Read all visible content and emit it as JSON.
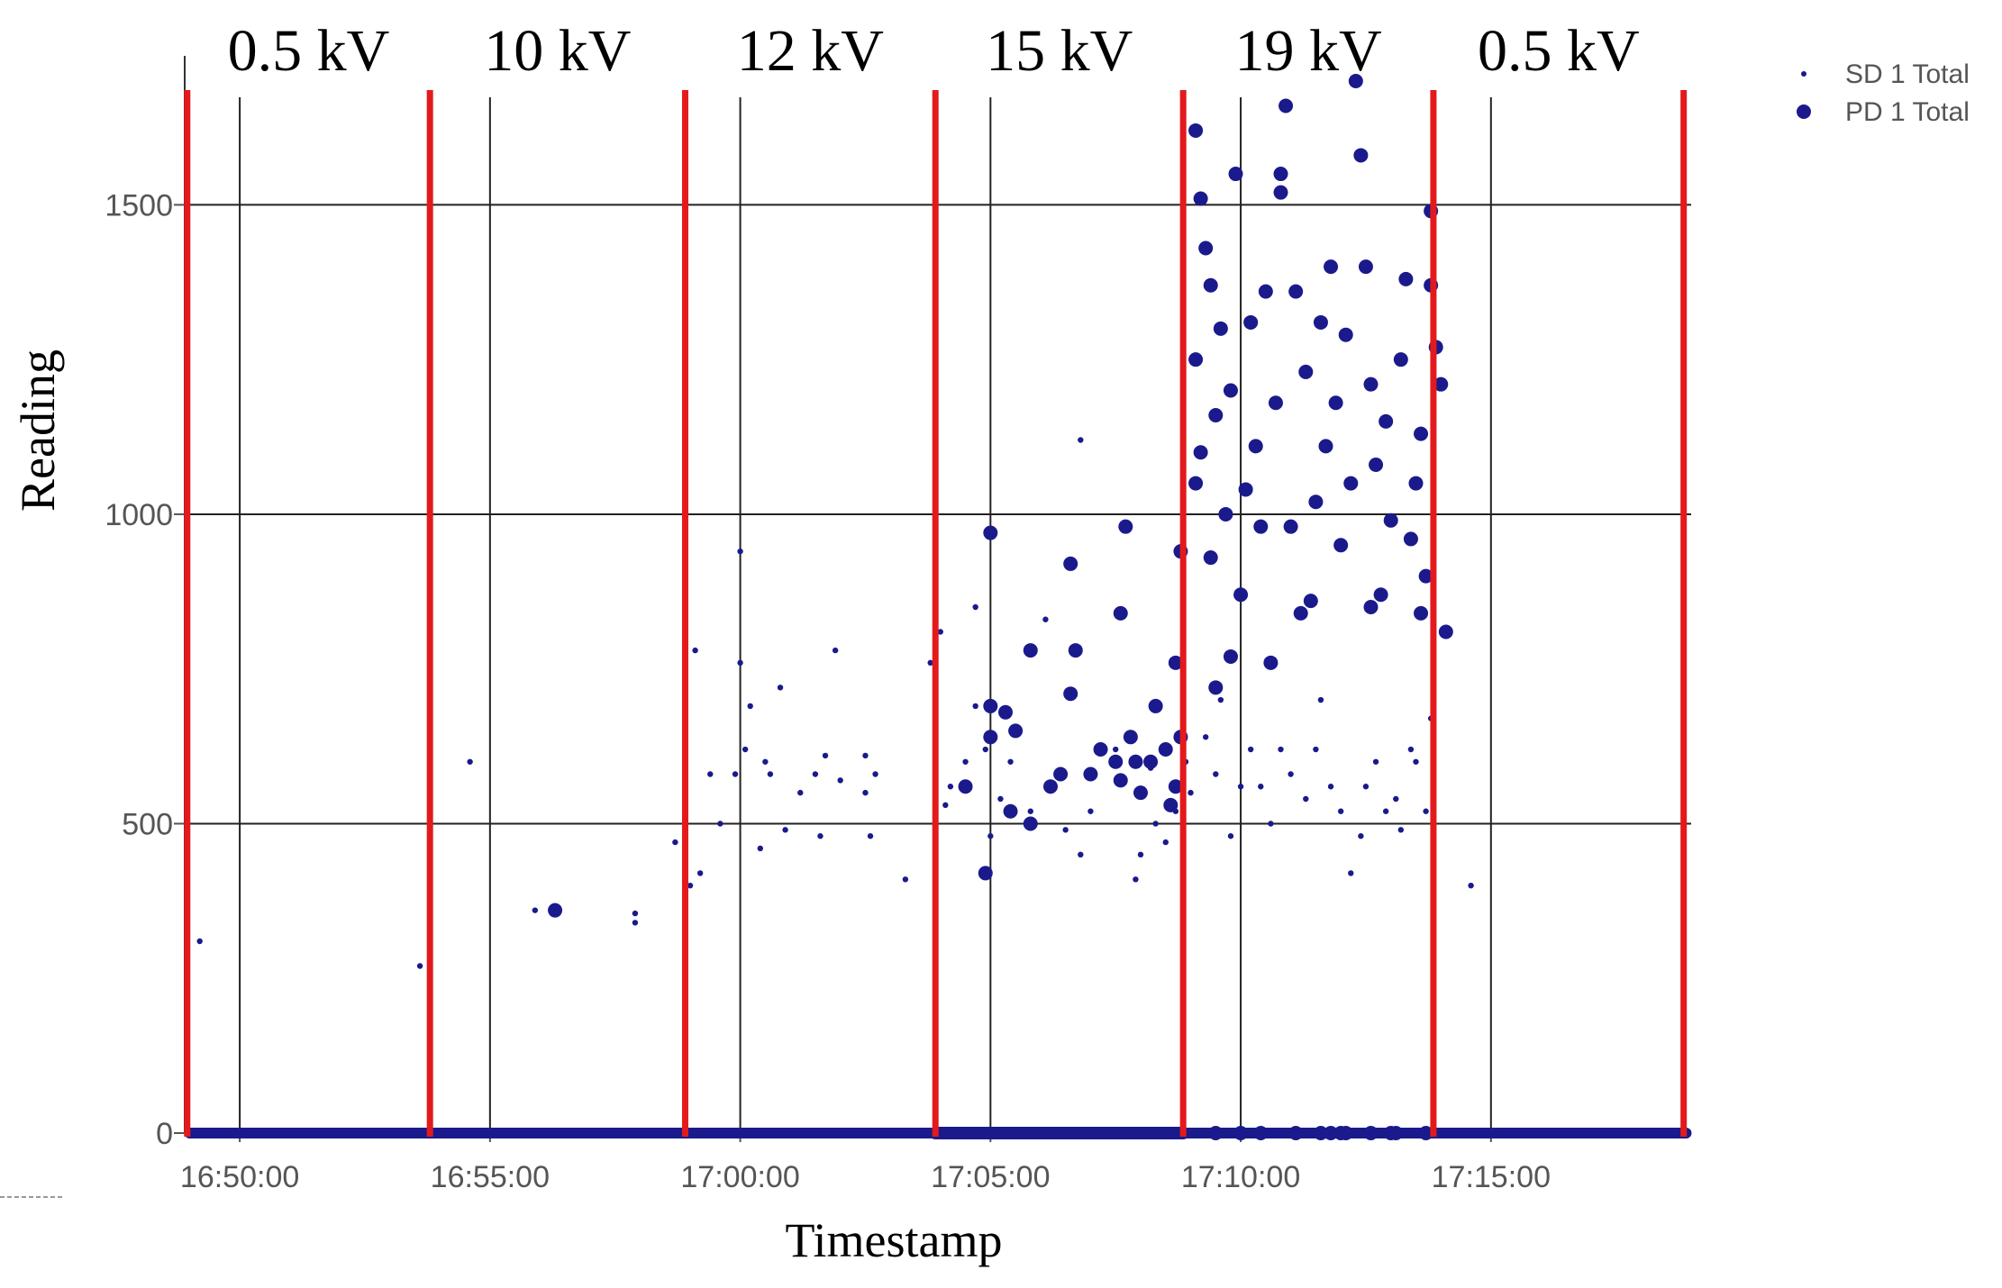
{
  "chart_data": {
    "type": "scatter",
    "title": "",
    "xlabel": "Timestamp",
    "ylabel": "Reading",
    "x_unit": "minutes after 16:50:00",
    "x_ticks": [
      "16:50:00",
      "16:55:00",
      "17:00:00",
      "17:05:00",
      "17:10:00",
      "17:15:00"
    ],
    "x_tick_values": [
      0,
      5,
      10,
      15,
      20,
      25
    ],
    "xlim": [
      -1.1,
      29.0
    ],
    "y_ticks": [
      "0",
      "500",
      "1000",
      "1500"
    ],
    "y_tick_values": [
      0,
      500,
      1000,
      1500
    ],
    "ylim": [
      0,
      1700
    ],
    "grid": true,
    "legend_position": "top-right",
    "voltage_boundaries": [
      -1.05,
      3.8,
      8.9,
      13.9,
      18.85,
      23.85,
      28.85
    ],
    "voltage_bands": [
      {
        "label": "0.5 kV",
        "start": -1.05,
        "end": 3.8
      },
      {
        "label": "10 kV",
        "start": 3.8,
        "end": 8.9
      },
      {
        "label": "12 kV",
        "start": 8.9,
        "end": 13.9
      },
      {
        "label": "15 kV",
        "start": 13.9,
        "end": 18.85
      },
      {
        "label": "19 kV",
        "start": 18.85,
        "end": 23.85
      },
      {
        "label": "0.5 kV",
        "start": 23.85,
        "end": 28.85
      }
    ],
    "boundary_color": "#e31a1c",
    "series_color": "#1a1a8c",
    "series": [
      {
        "name": "SD 1 Total",
        "marker": "small",
        "baseline": {
          "y": 0,
          "x_start": -1.0,
          "x_end": 28.9
        },
        "points": [
          [
            -0.8,
            310
          ],
          [
            3.6,
            270
          ],
          [
            4.6,
            600
          ],
          [
            5.9,
            360
          ],
          [
            7.9,
            340
          ],
          [
            7.9,
            355
          ],
          [
            8.7,
            470
          ],
          [
            9.0,
            400
          ],
          [
            9.1,
            780
          ],
          [
            9.2,
            420
          ],
          [
            9.4,
            580
          ],
          [
            9.6,
            500
          ],
          [
            9.9,
            580
          ],
          [
            10.1,
            620
          ],
          [
            10.0,
            940
          ],
          [
            10.0,
            760
          ],
          [
            10.2,
            690
          ],
          [
            10.4,
            460
          ],
          [
            10.5,
            600
          ],
          [
            10.6,
            580
          ],
          [
            10.8,
            720
          ],
          [
            10.9,
            490
          ],
          [
            11.2,
            550
          ],
          [
            11.5,
            580
          ],
          [
            11.6,
            480
          ],
          [
            11.7,
            610
          ],
          [
            11.9,
            780
          ],
          [
            12.0,
            570
          ],
          [
            12.5,
            550
          ],
          [
            12.5,
            610
          ],
          [
            12.6,
            480
          ],
          [
            12.7,
            580
          ],
          [
            13.3,
            410
          ],
          [
            13.8,
            760
          ],
          [
            14.0,
            810
          ],
          [
            14.1,
            530
          ],
          [
            14.2,
            560
          ],
          [
            14.5,
            600
          ],
          [
            14.7,
            850
          ],
          [
            14.7,
            690
          ],
          [
            14.9,
            620
          ],
          [
            15.0,
            480
          ],
          [
            15.2,
            540
          ],
          [
            15.4,
            600
          ],
          [
            15.8,
            520
          ],
          [
            16.1,
            830
          ],
          [
            16.5,
            490
          ],
          [
            16.8,
            1120
          ],
          [
            16.8,
            450
          ],
          [
            17.0,
            520
          ],
          [
            17.5,
            620
          ],
          [
            17.6,
            570
          ],
          [
            17.9,
            410
          ],
          [
            18.0,
            450
          ],
          [
            18.2,
            590
          ],
          [
            18.3,
            500
          ],
          [
            18.5,
            470
          ],
          [
            18.7,
            520
          ],
          [
            18.9,
            600
          ],
          [
            19.0,
            550
          ],
          [
            19.3,
            640
          ],
          [
            19.5,
            580
          ],
          [
            19.6,
            700
          ],
          [
            19.8,
            480
          ],
          [
            20.0,
            560
          ],
          [
            20.2,
            620
          ],
          [
            20.4,
            560
          ],
          [
            20.6,
            500
          ],
          [
            20.8,
            620
          ],
          [
            21.0,
            580
          ],
          [
            21.3,
            540
          ],
          [
            21.5,
            620
          ],
          [
            21.6,
            700
          ],
          [
            21.8,
            560
          ],
          [
            22.0,
            520
          ],
          [
            22.2,
            420
          ],
          [
            22.4,
            480
          ],
          [
            22.5,
            560
          ],
          [
            22.7,
            600
          ],
          [
            22.9,
            520
          ],
          [
            23.1,
            540
          ],
          [
            23.2,
            490
          ],
          [
            23.4,
            620
          ],
          [
            23.5,
            600
          ],
          [
            23.7,
            520
          ],
          [
            23.8,
            670
          ],
          [
            24.6,
            400
          ]
        ]
      },
      {
        "name": "PD 1 Total",
        "marker": "large",
        "baseline": {
          "y": 0,
          "x_start": 13.9,
          "x_end": 18.85
        },
        "points": [
          [
            6.3,
            360
          ],
          [
            15.0,
            970
          ],
          [
            15.0,
            690
          ],
          [
            15.0,
            640
          ],
          [
            14.9,
            420
          ],
          [
            14.5,
            560
          ],
          [
            15.3,
            680
          ],
          [
            15.4,
            520
          ],
          [
            15.5,
            650
          ],
          [
            15.8,
            500
          ],
          [
            15.8,
            780
          ],
          [
            16.2,
            560
          ],
          [
            16.4,
            580
          ],
          [
            16.6,
            920
          ],
          [
            16.6,
            710
          ],
          [
            16.7,
            780
          ],
          [
            17.0,
            580
          ],
          [
            17.2,
            620
          ],
          [
            17.5,
            600
          ],
          [
            17.6,
            570
          ],
          [
            17.6,
            840
          ],
          [
            17.7,
            980
          ],
          [
            17.8,
            640
          ],
          [
            17.9,
            600
          ],
          [
            18.0,
            550
          ],
          [
            18.2,
            600
          ],
          [
            18.3,
            690
          ],
          [
            18.5,
            620
          ],
          [
            18.7,
            760
          ],
          [
            18.7,
            560
          ],
          [
            18.8,
            640
          ],
          [
            18.8,
            940
          ],
          [
            18.6,
            530
          ],
          [
            19.1,
            1620
          ],
          [
            19.2,
            1510
          ],
          [
            19.3,
            1430
          ],
          [
            19.1,
            1250
          ],
          [
            19.4,
            1370
          ],
          [
            19.2,
            1100
          ],
          [
            19.1,
            1050
          ],
          [
            19.4,
            930
          ],
          [
            19.5,
            1160
          ],
          [
            19.6,
            1300
          ],
          [
            19.8,
            1200
          ],
          [
            19.9,
            1550
          ],
          [
            20.0,
            870
          ],
          [
            19.8,
            770
          ],
          [
            20.1,
            1040
          ],
          [
            20.2,
            1310
          ],
          [
            20.3,
            1110
          ],
          [
            20.5,
            1360
          ],
          [
            20.7,
            1180
          ],
          [
            20.8,
            1550
          ],
          [
            20.8,
            1520
          ],
          [
            20.9,
            1660
          ],
          [
            21.0,
            980
          ],
          [
            21.1,
            1360
          ],
          [
            21.2,
            840
          ],
          [
            21.3,
            1230
          ],
          [
            21.5,
            1020
          ],
          [
            21.6,
            1310
          ],
          [
            21.7,
            1110
          ],
          [
            21.9,
            1180
          ],
          [
            22.0,
            950
          ],
          [
            22.2,
            1050
          ],
          [
            22.3,
            1700
          ],
          [
            22.4,
            1580
          ],
          [
            22.5,
            1400
          ],
          [
            22.6,
            1210
          ],
          [
            22.7,
            1080
          ],
          [
            22.8,
            870
          ],
          [
            22.9,
            1150
          ],
          [
            23.0,
            990
          ],
          [
            23.2,
            1250
          ],
          [
            23.3,
            1380
          ],
          [
            23.5,
            1050
          ],
          [
            23.6,
            1130
          ],
          [
            23.7,
            900
          ],
          [
            23.6,
            840
          ],
          [
            23.8,
            1490
          ],
          [
            23.8,
            1370
          ],
          [
            23.9,
            1270
          ],
          [
            24.0,
            1210
          ],
          [
            24.1,
            810
          ],
          [
            20.4,
            980
          ],
          [
            21.4,
            860
          ],
          [
            22.1,
            1290
          ],
          [
            19.7,
            1000
          ],
          [
            20.6,
            760
          ],
          [
            21.8,
            1400
          ],
          [
            22.6,
            850
          ],
          [
            23.4,
            960
          ],
          [
            19.5,
            720
          ]
        ],
        "baseline_points": [
          [
            19.5,
            0
          ],
          [
            20.0,
            0
          ],
          [
            20.4,
            0
          ],
          [
            21.1,
            0
          ],
          [
            21.6,
            0
          ],
          [
            21.8,
            0
          ],
          [
            22.0,
            0
          ],
          [
            22.1,
            0
          ],
          [
            22.6,
            0
          ],
          [
            23.0,
            0
          ],
          [
            23.1,
            0
          ],
          [
            23.7,
            0
          ]
        ]
      }
    ]
  }
}
